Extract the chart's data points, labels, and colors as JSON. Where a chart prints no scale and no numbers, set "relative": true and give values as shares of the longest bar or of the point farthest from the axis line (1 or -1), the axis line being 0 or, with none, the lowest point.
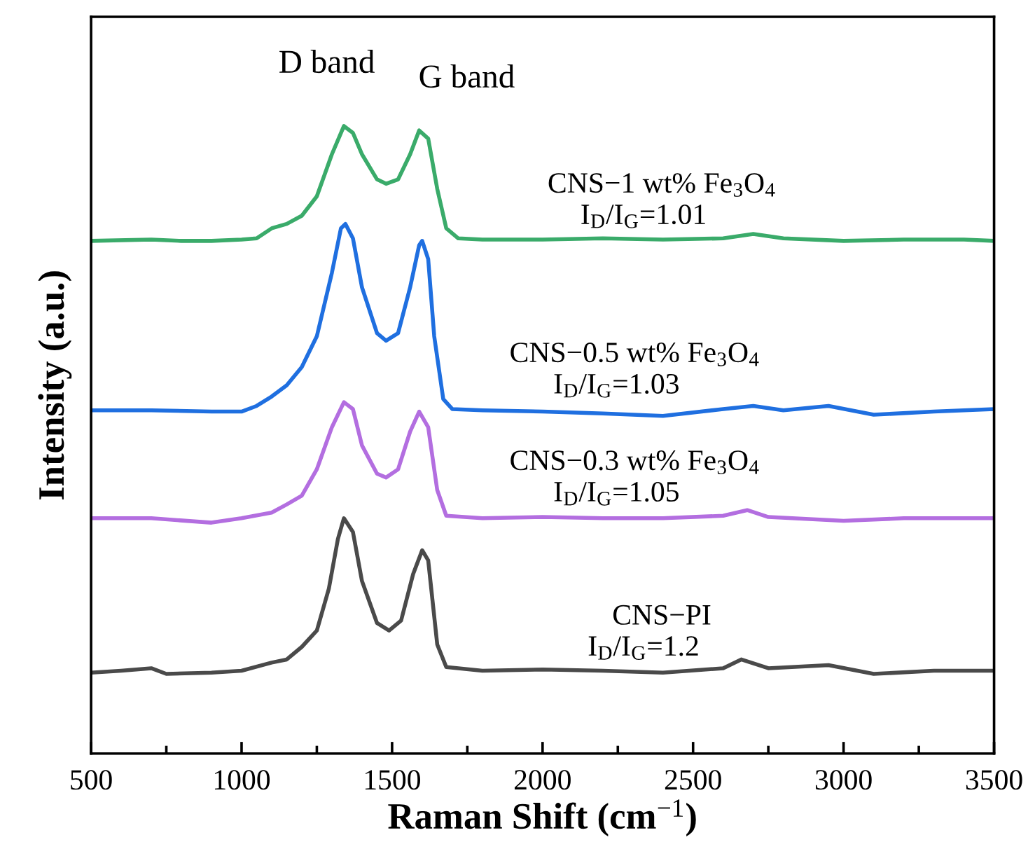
{
  "chart_data": {
    "type": "line",
    "relative": true,
    "xlabel": "Raman Shift (cm$^{−1}$)",
    "ylabel": "Intensity (a.u.)",
    "xlim": [
      500,
      3500
    ],
    "xticks": [
      500,
      {
        "value": 750,
        "label": null
      },
      1000,
      {
        "value": 1250,
        "label": null
      },
      1500,
      {
        "value": 1750,
        "label": null
      },
      2000,
      {
        "value": 2250,
        "label": null
      },
      2500,
      {
        "value": 2750,
        "label": null
      },
      3000,
      {
        "value": 3250,
        "label": null
      },
      3500
    ],
    "grid": false,
    "legend": false,
    "marker": "none",
    "line_style": "solid",
    "series": [
      {
        "name": "CNS−1 wt% Fe$_{3}$O$_{4}$",
        "color": "#3aab6a",
        "x": [
          500,
          700,
          800,
          900,
          1000,
          1050,
          1100,
          1150,
          1200,
          1250,
          1300,
          1340,
          1370,
          1400,
          1450,
          1480,
          1520,
          1560,
          1590,
          1620,
          1650,
          1680,
          1720,
          1800,
          2000,
          2200,
          2400,
          2600,
          2700,
          2800,
          3000,
          3200,
          3400,
          3500
        ],
        "values": [
          0.817,
          0.819,
          0.817,
          0.817,
          0.819,
          0.821,
          0.837,
          0.844,
          0.857,
          0.888,
          0.955,
          1.0,
          0.989,
          0.955,
          0.915,
          0.908,
          0.915,
          0.955,
          0.993,
          0.98,
          0.9,
          0.837,
          0.821,
          0.819,
          0.819,
          0.821,
          0.819,
          0.821,
          0.828,
          0.821,
          0.817,
          0.819,
          0.819,
          0.817
        ]
      },
      {
        "name": "CNS−0.5 wt% Fe$_{3}$O$_{4}$",
        "color": "#1f6fe0",
        "x": [
          500,
          700,
          900,
          1000,
          1050,
          1100,
          1150,
          1200,
          1250,
          1300,
          1330,
          1345,
          1370,
          1400,
          1450,
          1480,
          1520,
          1560,
          1590,
          1600,
          1620,
          1640,
          1670,
          1700,
          1800,
          2000,
          2200,
          2400,
          2600,
          2700,
          2800,
          2950,
          3100,
          3300,
          3500
        ],
        "values": [
          0.547,
          0.547,
          0.545,
          0.545,
          0.554,
          0.569,
          0.587,
          0.616,
          0.665,
          0.766,
          0.837,
          0.844,
          0.821,
          0.743,
          0.67,
          0.658,
          0.67,
          0.743,
          0.81,
          0.817,
          0.788,
          0.665,
          0.565,
          0.549,
          0.547,
          0.545,
          0.542,
          0.538,
          0.549,
          0.554,
          0.547,
          0.554,
          0.54,
          0.545,
          0.549
        ]
      },
      {
        "name": "CNS−0.3 wt% Fe$_{3}$O$_{4}$",
        "color": "#b36ee0",
        "x": [
          500,
          700,
          900,
          1000,
          1100,
          1150,
          1200,
          1250,
          1300,
          1340,
          1370,
          1400,
          1450,
          1480,
          1520,
          1560,
          1590,
          1620,
          1650,
          1680,
          1800,
          2000,
          2200,
          2400,
          2600,
          2680,
          2750,
          3000,
          3200,
          3500
        ],
        "values": [
          0.375,
          0.375,
          0.368,
          0.375,
          0.384,
          0.397,
          0.411,
          0.453,
          0.52,
          0.56,
          0.549,
          0.491,
          0.446,
          0.44,
          0.453,
          0.513,
          0.545,
          0.52,
          0.42,
          0.379,
          0.375,
          0.377,
          0.375,
          0.375,
          0.379,
          0.388,
          0.377,
          0.371,
          0.375,
          0.375
        ]
      },
      {
        "name": "CNS−PI",
        "color": "#4a4a4a",
        "x": [
          500,
          600,
          700,
          750,
          900,
          1000,
          1100,
          1150,
          1200,
          1250,
          1290,
          1320,
          1340,
          1370,
          1400,
          1450,
          1490,
          1530,
          1570,
          1600,
          1620,
          1650,
          1680,
          1800,
          2000,
          2200,
          2400,
          2600,
          2660,
          2750,
          2950,
          3100,
          3300,
          3500
        ],
        "values": [
          0.129,
          0.132,
          0.136,
          0.127,
          0.129,
          0.132,
          0.145,
          0.15,
          0.17,
          0.196,
          0.263,
          0.342,
          0.375,
          0.353,
          0.275,
          0.208,
          0.196,
          0.212,
          0.286,
          0.324,
          0.308,
          0.174,
          0.138,
          0.132,
          0.134,
          0.132,
          0.129,
          0.136,
          0.15,
          0.136,
          0.141,
          0.127,
          0.132,
          0.132
        ]
      }
    ],
    "annotations": [
      "D band",
      "G band",
      "I$_{D}$/I$_{G}$=1.01",
      "I$_{D}$/I$_{G}$=1.03",
      "I$_{D}$/I$_{G}$=1.05",
      "I$_{D}$/I$_{G}$=1.2"
    ]
  }
}
